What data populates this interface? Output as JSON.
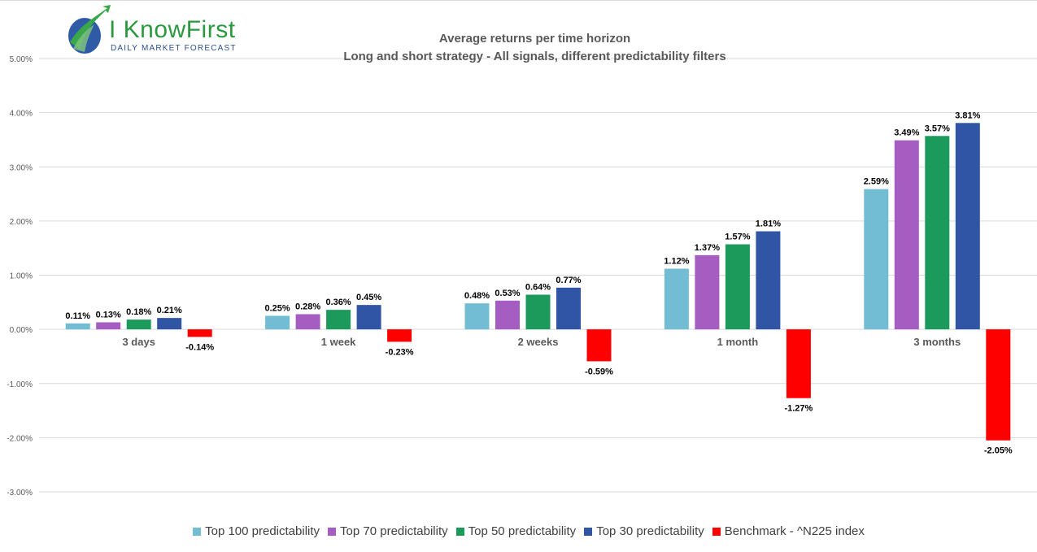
{
  "logo": {
    "name": "I KnowFirst",
    "tagline": "DAILY MARKET FORECAST"
  },
  "chart_data": {
    "type": "bar",
    "title": "Average returns per time horizon",
    "subtitle": "Long and short strategy - All signals, different predictability filters",
    "categories": [
      "3 days",
      "1 week",
      "2 weeks",
      "1 month",
      "3 months"
    ],
    "series": [
      {
        "name": "Top 100 predictability",
        "color": "#72bcd4",
        "values": [
          0.11,
          0.25,
          0.48,
          1.12,
          2.59
        ],
        "labels": [
          "0.11%",
          "0.25%",
          "0.48%",
          "1.12%",
          "2.59%"
        ]
      },
      {
        "name": "Top 70 predictability",
        "color": "#a55dc1",
        "values": [
          0.13,
          0.28,
          0.53,
          1.37,
          3.49
        ],
        "labels": [
          "0.13%",
          "0.28%",
          "0.53%",
          "1.37%",
          "3.49%"
        ]
      },
      {
        "name": "Top 50 predictability",
        "color": "#1b9a5b",
        "values": [
          0.18,
          0.36,
          0.64,
          1.57,
          3.57
        ],
        "labels": [
          "0.18%",
          "0.36%",
          "0.64%",
          "1.57%",
          "3.57%"
        ]
      },
      {
        "name": "Top 30 predictability",
        "color": "#2f55a4",
        "values": [
          0.21,
          0.45,
          0.77,
          1.81,
          3.81
        ],
        "labels": [
          "0.21%",
          "0.45%",
          "0.77%",
          "1.81%",
          "3.81%"
        ]
      },
      {
        "name": "Benchmark - ^N225 index",
        "color": "#ff0000",
        "values": [
          -0.14,
          -0.23,
          -0.59,
          -1.27,
          -2.05
        ],
        "labels": [
          "-0.14%",
          "-0.23%",
          "-0.59%",
          "-1.27%",
          "-2.05%"
        ]
      }
    ],
    "ylim": [
      -3,
      5
    ],
    "yticks": [
      5,
      4,
      3,
      2,
      1,
      0,
      -1,
      -2,
      -3
    ],
    "ytick_labels": [
      "5.00%",
      "4.00%",
      "3.00%",
      "2.00%",
      "1.00%",
      "0.00%",
      "-1.00%",
      "-2.00%",
      "-3.00%"
    ],
    "grid": true,
    "legend": "bottom"
  }
}
